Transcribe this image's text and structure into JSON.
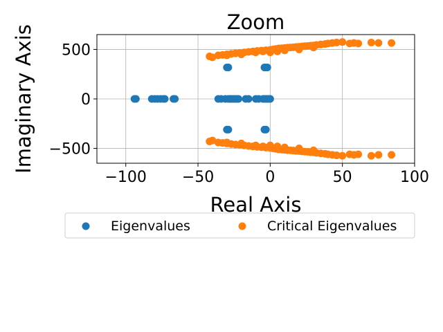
{
  "chart_data": {
    "type": "scatter",
    "title": "Zoom",
    "xlabel": "Real Axis",
    "ylabel": "Imaginary Axis",
    "xlim": [
      -120,
      100
    ],
    "ylim": [
      -650,
      650
    ],
    "xticks": [
      -100,
      -50,
      0,
      50,
      100
    ],
    "yticks": [
      -500,
      0,
      500
    ],
    "xtick_labels": [
      "−100",
      "−50",
      "0",
      "50",
      "100"
    ],
    "ytick_labels": [
      "−500",
      "0",
      "500"
    ],
    "grid": true,
    "legend_position": "below",
    "series": [
      {
        "name": "Eigenvalues",
        "color": "#1f77b4",
        "points": [
          [
            -93,
            0
          ],
          [
            -94,
            0
          ],
          [
            -82,
            0
          ],
          [
            -80,
            0
          ],
          [
            -78,
            0
          ],
          [
            -76,
            0
          ],
          [
            -74,
            0
          ],
          [
            -73,
            0
          ],
          [
            -67,
            0
          ],
          [
            -66,
            0
          ],
          [
            -36,
            0
          ],
          [
            -34,
            0
          ],
          [
            -31,
            0
          ],
          [
            -29,
            0
          ],
          [
            -28,
            0
          ],
          [
            -27,
            0
          ],
          [
            -26,
            0
          ],
          [
            -25,
            0
          ],
          [
            -24,
            0
          ],
          [
            -23,
            0
          ],
          [
            -22,
            0
          ],
          [
            -17,
            0
          ],
          [
            -15,
            0
          ],
          [
            -10,
            0
          ],
          [
            -8,
            0
          ],
          [
            -5,
            0
          ],
          [
            -4,
            0
          ],
          [
            -3,
            0
          ],
          [
            -2,
            0
          ],
          [
            -1,
            0
          ],
          [
            0,
            0
          ],
          [
            -30,
            318
          ],
          [
            -29,
            318
          ],
          [
            -4,
            318
          ],
          [
            -3,
            318
          ],
          [
            -2,
            318
          ],
          [
            -30,
            -310
          ],
          [
            -29,
            -310
          ],
          [
            -4,
            -310
          ],
          [
            -3,
            -310
          ]
        ]
      },
      {
        "name": "Critical Eigenvalues",
        "color": "#ff7f0e",
        "points": [
          [
            -42,
            430
          ],
          [
            -36,
            440
          ],
          [
            -33,
            445
          ],
          [
            -30,
            450
          ],
          [
            -27,
            455
          ],
          [
            -24,
            460
          ],
          [
            -21,
            465
          ],
          [
            -18,
            470
          ],
          [
            -15,
            475
          ],
          [
            -12,
            480
          ],
          [
            -9,
            485
          ],
          [
            -6,
            488
          ],
          [
            -3,
            492
          ],
          [
            0,
            495
          ],
          [
            2,
            500
          ],
          [
            4,
            505
          ],
          [
            6,
            510
          ],
          [
            8,
            512
          ],
          [
            10,
            515
          ],
          [
            12,
            518
          ],
          [
            14,
            520
          ],
          [
            16,
            522
          ],
          [
            18,
            525
          ],
          [
            20,
            527
          ],
          [
            22,
            530
          ],
          [
            24,
            533
          ],
          [
            26,
            535
          ],
          [
            28,
            538
          ],
          [
            30,
            540
          ],
          [
            32,
            545
          ],
          [
            35,
            550
          ],
          [
            38,
            555
          ],
          [
            40,
            560
          ],
          [
            43,
            565
          ],
          [
            46,
            570
          ],
          [
            50,
            575
          ],
          [
            55,
            560
          ],
          [
            58,
            565
          ],
          [
            61,
            560
          ],
          [
            70,
            570
          ],
          [
            75,
            565
          ],
          [
            84,
            565
          ],
          [
            -40,
            420
          ],
          [
            -30,
            440
          ],
          [
            -20,
            450
          ],
          [
            -10,
            470
          ],
          [
            -5,
            480
          ],
          [
            0,
            470
          ],
          [
            5,
            480
          ],
          [
            10,
            490
          ],
          [
            20,
            500
          ],
          [
            30,
            520
          ],
          [
            -42,
            -430
          ],
          [
            -36,
            -440
          ],
          [
            -33,
            -445
          ],
          [
            -30,
            -450
          ],
          [
            -27,
            -455
          ],
          [
            -24,
            -460
          ],
          [
            -21,
            -465
          ],
          [
            -18,
            -470
          ],
          [
            -15,
            -475
          ],
          [
            -12,
            -480
          ],
          [
            -9,
            -485
          ],
          [
            -6,
            -488
          ],
          [
            -3,
            -492
          ],
          [
            0,
            -495
          ],
          [
            2,
            -500
          ],
          [
            4,
            -505
          ],
          [
            6,
            -510
          ],
          [
            8,
            -512
          ],
          [
            10,
            -515
          ],
          [
            12,
            -518
          ],
          [
            14,
            -520
          ],
          [
            16,
            -522
          ],
          [
            18,
            -525
          ],
          [
            20,
            -527
          ],
          [
            22,
            -530
          ],
          [
            24,
            -533
          ],
          [
            26,
            -535
          ],
          [
            28,
            -538
          ],
          [
            30,
            -540
          ],
          [
            32,
            -545
          ],
          [
            35,
            -550
          ],
          [
            38,
            -555
          ],
          [
            40,
            -560
          ],
          [
            43,
            -565
          ],
          [
            46,
            -570
          ],
          [
            50,
            -575
          ],
          [
            55,
            -560
          ],
          [
            58,
            -565
          ],
          [
            61,
            -560
          ],
          [
            70,
            -575
          ],
          [
            75,
            -565
          ],
          [
            84,
            -565
          ],
          [
            -40,
            -420
          ],
          [
            -30,
            -440
          ],
          [
            -20,
            -450
          ],
          [
            -10,
            -470
          ],
          [
            -5,
            -480
          ],
          [
            0,
            -470
          ],
          [
            5,
            -480
          ],
          [
            10,
            -490
          ],
          [
            20,
            -500
          ],
          [
            30,
            -520
          ]
        ]
      }
    ]
  }
}
